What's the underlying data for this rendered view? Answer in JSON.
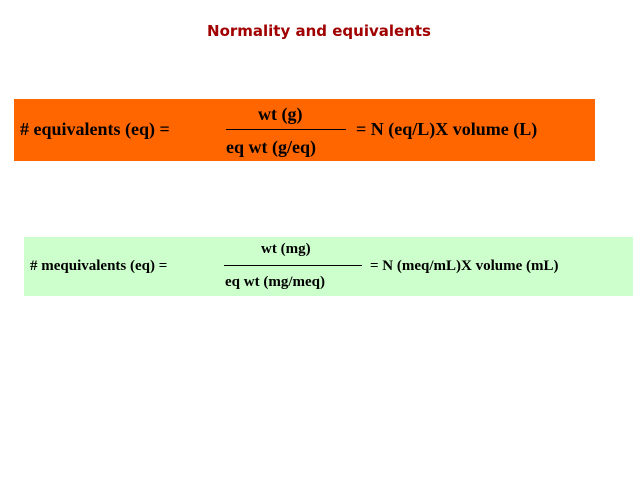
{
  "title": "Normality and equivalents",
  "formula1": {
    "lhs": "# equivalents (eq) =",
    "numerator": "wt (g)",
    "denominator": "eq wt (g/eq)",
    "rhs": "= N (eq/L)X volume (L)"
  },
  "formula2": {
    "lhs": "# mequivalents (eq) =",
    "numerator": "wt (mg)",
    "denominator": "eq wt (mg/meq)",
    "rhs": "= N (meq/mL)X volume (mL)"
  }
}
